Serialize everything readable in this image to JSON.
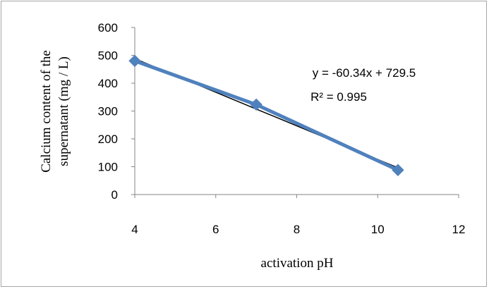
{
  "chart_data": {
    "type": "scatter",
    "x": [
      4,
      7,
      10.5
    ],
    "series": [
      {
        "values": [
          480,
          323,
          88
        ],
        "color": "#4f81bd",
        "marker": "diamond"
      }
    ],
    "trendline": {
      "type": "linear",
      "slope": -60.34,
      "intercept": 729.5,
      "color": "#000000",
      "equation_label": "y = -60.34x + 729.5",
      "r2_label": "R² = 0.995"
    },
    "xlim": [
      4,
      12
    ],
    "ylim": [
      0,
      600
    ],
    "x_ticks": [
      4,
      6,
      8,
      10,
      12
    ],
    "y_ticks": [
      0,
      100,
      200,
      300,
      400,
      500,
      600
    ],
    "xlabel": "activation pH",
    "ylabel_lines": [
      "Calcium content of the",
      "supernatant (mg / L)"
    ],
    "title": "",
    "grid": false,
    "legend": "none"
  }
}
